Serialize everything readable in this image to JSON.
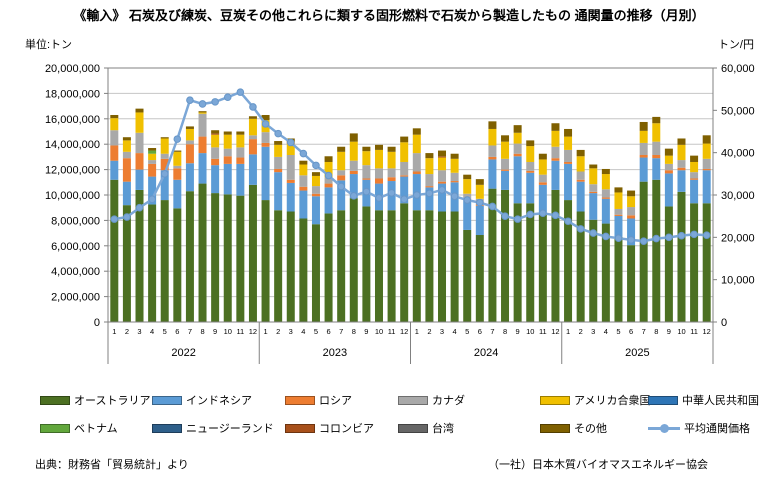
{
  "title": "《輸入》 石炭及び練炭、豆炭その他これらに類する固形燃料で石炭から製造したもの 通関量の推移（月別）",
  "unit_left": "単位:トン",
  "unit_right": "トン/円",
  "footer": {
    "source": "出典：財務省「貿易統計」より",
    "organization": "（一社）日本木質バイオマスエネルギー協会"
  },
  "chart_data": {
    "type": "bar",
    "subtype": "stacked-bars-with-price-line",
    "years": [
      "2022",
      "2023",
      "2024",
      "2025"
    ],
    "month_labels": [
      "1",
      "2",
      "3",
      "4",
      "5",
      "6",
      "7",
      "8",
      "9",
      "10",
      "11",
      "12"
    ],
    "left_axis": {
      "min": 0,
      "max": 20000000,
      "tick_step": 2000000,
      "ticks": [
        "0",
        "2,000,000",
        "4,000,000",
        "6,000,000",
        "8,000,000",
        "10,000,000",
        "12,000,000",
        "14,000,000",
        "16,000,000",
        "18,000,000",
        "20,000,000"
      ]
    },
    "right_axis": {
      "min": 0,
      "max": 60000,
      "tick_step": 10000,
      "ticks": [
        "0",
        "10,000",
        "20,000",
        "30,000",
        "40,000",
        "50,000",
        "60,000"
      ]
    },
    "values_unit": "million_tons",
    "gridline_color": "#c6c6c6",
    "axis_color": "#808080",
    "series": [
      {
        "name": "オーストラリア",
        "color": "#4c7022",
        "values": [
          11.2,
          9.2,
          10.4,
          9.25,
          9.6,
          8.95,
          10.3,
          10.9,
          10.15,
          10.05,
          9.95,
          10.8,
          9.6,
          8.8,
          8.7,
          8.15,
          7.7,
          8.55,
          8.8,
          9.75,
          9.1,
          8.8,
          8.8,
          9.35,
          8.8,
          8.8,
          8.7,
          8.7,
          7.25,
          6.85,
          10.5,
          10.4,
          9.35,
          9.35,
          8.55,
          10.4,
          9.6,
          8.7,
          8.05,
          7.75,
          6.7,
          6.05,
          11.05,
          11.2,
          9.1,
          10.25,
          9.35,
          9.35
        ]
      },
      {
        "name": "インドネシア",
        "color": "#5b9bd5",
        "values": [
          1.5,
          1.85,
          1.6,
          2.2,
          2.35,
          2.25,
          2.2,
          2.4,
          2.2,
          2.4,
          2.5,
          2.4,
          4.2,
          3.0,
          2.25,
          2.2,
          2.2,
          2.05,
          2.35,
          1.9,
          2.1,
          2.1,
          2.3,
          2.1,
          2.85,
          1.8,
          2.2,
          2.3,
          2.35,
          2.3,
          2.3,
          1.5,
          3.7,
          2.4,
          2.25,
          2.3,
          2.85,
          2.35,
          2.1,
          1.95,
          1.65,
          2.1,
          1.9,
          1.7,
          2.6,
          1.7,
          1.85,
          2.6
        ]
      },
      {
        "name": "ロシア",
        "color": "#ed7d31",
        "values": [
          1.2,
          1.85,
          1.3,
          1.0,
          0.9,
          0.9,
          1.5,
          1.3,
          0.5,
          0.6,
          0.5,
          1.2,
          0.3,
          0.25,
          0.25,
          0.3,
          0.2,
          0.3,
          0.4,
          0.25,
          0.1,
          0.4,
          0.3,
          0.1,
          0.2,
          0.1,
          0.15,
          0.1,
          0.1,
          0.1,
          0.2,
          0.1,
          0.2,
          0.15,
          0.2,
          0.2,
          0.15,
          0.15,
          0.1,
          0.1,
          0.1,
          0.25,
          0.2,
          0.25,
          0.25,
          0.2,
          0.1,
          0.1
        ]
      },
      {
        "name": "カナダ",
        "color": "#a9a9a9",
        "values": [
          1.2,
          0.5,
          1.6,
          0.3,
          0.4,
          0.2,
          0.3,
          1.8,
          0.9,
          0.6,
          0.8,
          0.3,
          0.85,
          0.95,
          1.95,
          0.9,
          0.6,
          0.5,
          0.4,
          0.8,
          1.05,
          0.8,
          0.7,
          1.05,
          1.45,
          0.95,
          0.9,
          0.65,
          0.4,
          0.45,
          0.9,
          0.85,
          0.8,
          0.7,
          0.6,
          0.9,
          0.95,
          0.65,
          0.6,
          0.65,
          0.45,
          0.65,
          0.95,
          1.05,
          0.5,
          0.6,
          0.5,
          0.8
        ]
      },
      {
        "name": "アメリカ合衆国",
        "color": "#f0c000",
        "values": [
          0.95,
          0.9,
          1.6,
          0.5,
          1.2,
          1.1,
          0.9,
          0.1,
          1.0,
          1.1,
          1.0,
          1.3,
          0.95,
          0.95,
          0.9,
          0.85,
          0.8,
          1.2,
          1.45,
          1.5,
          1.1,
          1.45,
          1.3,
          1.55,
          1.45,
          1.25,
          1.0,
          1.1,
          1.15,
          1.1,
          1.3,
          1.35,
          0.85,
          1.25,
          1.2,
          1.25,
          1.05,
          1.2,
          1.25,
          1.2,
          1.3,
          0.85,
          0.95,
          1.45,
          0.65,
          1.2,
          0.8,
          1.2
        ]
      },
      {
        "name": "中華人民共和国",
        "color": "#2e75b6",
        "values": [
          0,
          0,
          0,
          0,
          0,
          0,
          0,
          0,
          0,
          0,
          0,
          0,
          0,
          0,
          0,
          0,
          0,
          0,
          0,
          0,
          0,
          0,
          0,
          0,
          0,
          0,
          0,
          0,
          0,
          0,
          0,
          0,
          0,
          0,
          0,
          0,
          0,
          0,
          0,
          0,
          0,
          0,
          0,
          0,
          0,
          0,
          0,
          0
        ]
      },
      {
        "name": "ベトナム",
        "color": "#62a73c",
        "values": [
          0,
          0,
          0,
          0.25,
          0,
          0,
          0,
          0,
          0,
          0,
          0,
          0,
          0,
          0,
          0,
          0,
          0,
          0,
          0,
          0,
          0,
          0,
          0,
          0,
          0,
          0,
          0,
          0,
          0,
          0,
          0,
          0,
          0,
          0,
          0,
          0,
          0,
          0,
          0,
          0,
          0,
          0,
          0,
          0,
          0,
          0,
          0,
          0
        ]
      },
      {
        "name": "ニュージーランド",
        "color": "#2e5f8a",
        "values": [
          0,
          0,
          0,
          0,
          0,
          0,
          0,
          0,
          0,
          0,
          0,
          0,
          0,
          0,
          0,
          0,
          0,
          0,
          0,
          0,
          0,
          0,
          0,
          0,
          0,
          0,
          0,
          0,
          0,
          0,
          0,
          0,
          0,
          0,
          0,
          0,
          0,
          0,
          0,
          0,
          0,
          0,
          0,
          0,
          0,
          0,
          0,
          0
        ]
      },
      {
        "name": "コロンビア",
        "color": "#a8501a",
        "values": [
          0,
          0,
          0,
          0,
          0,
          0,
          0,
          0,
          0.1,
          0,
          0,
          0,
          0,
          0,
          0.1,
          0,
          0,
          0,
          0,
          0,
          0,
          0,
          0,
          0,
          0,
          0,
          0.1,
          0,
          0,
          0,
          0,
          0,
          0,
          0,
          0,
          0,
          0,
          0,
          0,
          0,
          0,
          0,
          0,
          0,
          0,
          0,
          0,
          0
        ]
      },
      {
        "name": "台湾",
        "color": "#666666",
        "values": [
          0,
          0,
          0,
          0,
          0,
          0,
          0,
          0,
          0,
          0,
          0,
          0,
          0,
          0,
          0,
          0,
          0,
          0,
          0,
          0,
          0,
          0,
          0,
          0,
          0,
          0,
          0,
          0,
          0,
          0,
          0,
          0,
          0,
          0,
          0,
          0,
          0,
          0,
          0,
          0,
          0,
          0,
          0,
          0,
          0,
          0,
          0,
          0
        ]
      },
      {
        "name": "その他",
        "color": "#7f6000",
        "values": [
          0.25,
          0.25,
          0.3,
          0.2,
          0.1,
          0.1,
          0.2,
          0.1,
          0.25,
          0.25,
          0.25,
          0.2,
          0.4,
          0.3,
          0.3,
          0.3,
          0.3,
          0.45,
          0.4,
          0.65,
          0.35,
          0.4,
          0.4,
          0.45,
          0.5,
          0.4,
          0.45,
          0.4,
          0.35,
          0.45,
          0.6,
          0.5,
          0.6,
          0.45,
          0.45,
          0.6,
          0.6,
          0.5,
          0.3,
          0.4,
          0.4,
          0.45,
          0.7,
          0.5,
          0.55,
          0.5,
          0.5,
          0.65
        ]
      }
    ],
    "line_series": {
      "name": "平均通関価格",
      "color": "#7ba7d7",
      "marker_stroke": "#6796c8",
      "unit": "円/トン",
      "values": [
        24300,
        24800,
        27000,
        29000,
        35000,
        43200,
        52400,
        51500,
        52000,
        53100,
        54300,
        50800,
        46800,
        44500,
        42400,
        39800,
        37000,
        34600,
        32000,
        29800,
        30800,
        29300,
        30500,
        29000,
        30000,
        30400,
        31200,
        29700,
        28800,
        28200,
        27300,
        25000,
        24300,
        25400,
        25700,
        25200,
        23800,
        22000,
        21000,
        20200,
        19800,
        19400,
        19100,
        19700,
        20000,
        20400,
        20700,
        20500
      ]
    }
  }
}
